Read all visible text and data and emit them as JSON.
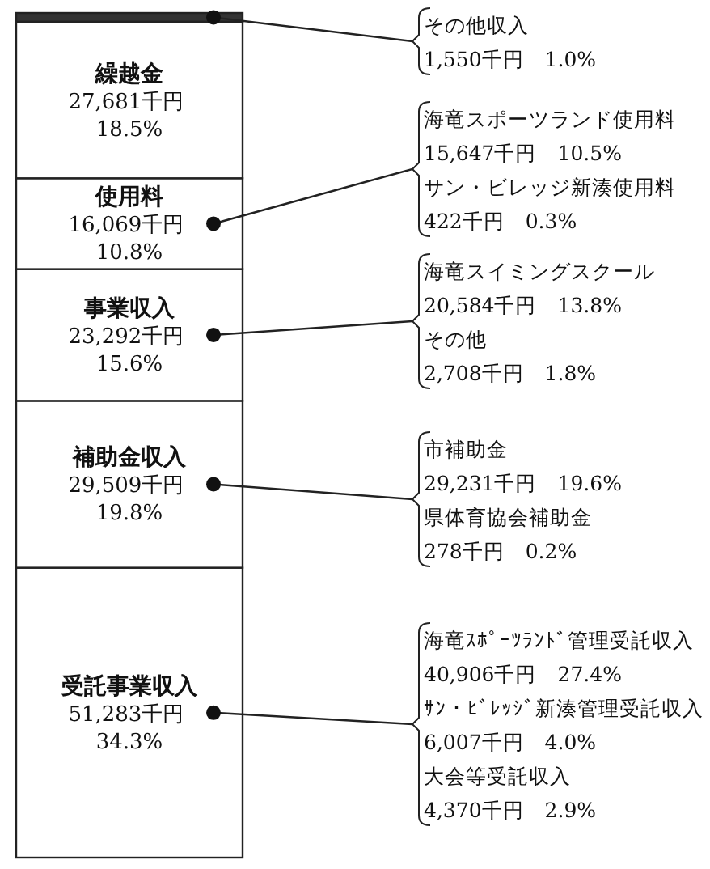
{
  "chart_data": {
    "type": "bar",
    "stacked": true,
    "categories": [
      null
    ],
    "series": [
      {
        "name": "受託事業収入",
        "color": "#ffffff",
        "values": [
          51283
        ],
        "value_labels": [
          "51,283千円 34.3%"
        ]
      },
      {
        "name": "補助金収入",
        "color": "#ffffff",
        "values": [
          29509
        ],
        "value_labels": [
          "29,509千円 19.8%"
        ]
      },
      {
        "name": "事業収入",
        "color": "#ffffff",
        "values": [
          23292
        ],
        "value_labels": [
          "23,292千円 15.6%"
        ]
      },
      {
        "name": "使用料",
        "color": "#ffffff",
        "values": [
          16069
        ],
        "value_labels": [
          "16,069千円 10.8%"
        ]
      },
      {
        "name": "繰越金",
        "color": "#ffffff",
        "values": [
          27681
        ],
        "value_labels": [
          "27,681千円 18.5%"
        ]
      },
      {
        "color": "#333333",
        "values": [
          1550
        ]
      }
    ],
    "annotations": [
      "その他収入",
      "1,550千円　1.0%",
      "海竜スポーツランド使用料",
      "15,647千円　10.5%",
      "サン・ビレッジ新湊使用料",
      "422千円　0.3%",
      "海竜スイミングスクール",
      "20,584千円　13.8%",
      "その他",
      "2,708千円　1.8%",
      "市補助金",
      "29,231千円　19.6%",
      "県体育協会補助金",
      "278千円　0.2%",
      "海竜ｽﾎﾟｰﾂﾗﾝﾄﾞ管理受託収入",
      "40,906千円　27.4%",
      "ｻﾝ・ﾋﾞﾚｯｼﾞ新湊管理受託収入",
      "6,007千円　4.0%",
      "大会等受託収入",
      "4,370千円　2.9%"
    ]
  }
}
